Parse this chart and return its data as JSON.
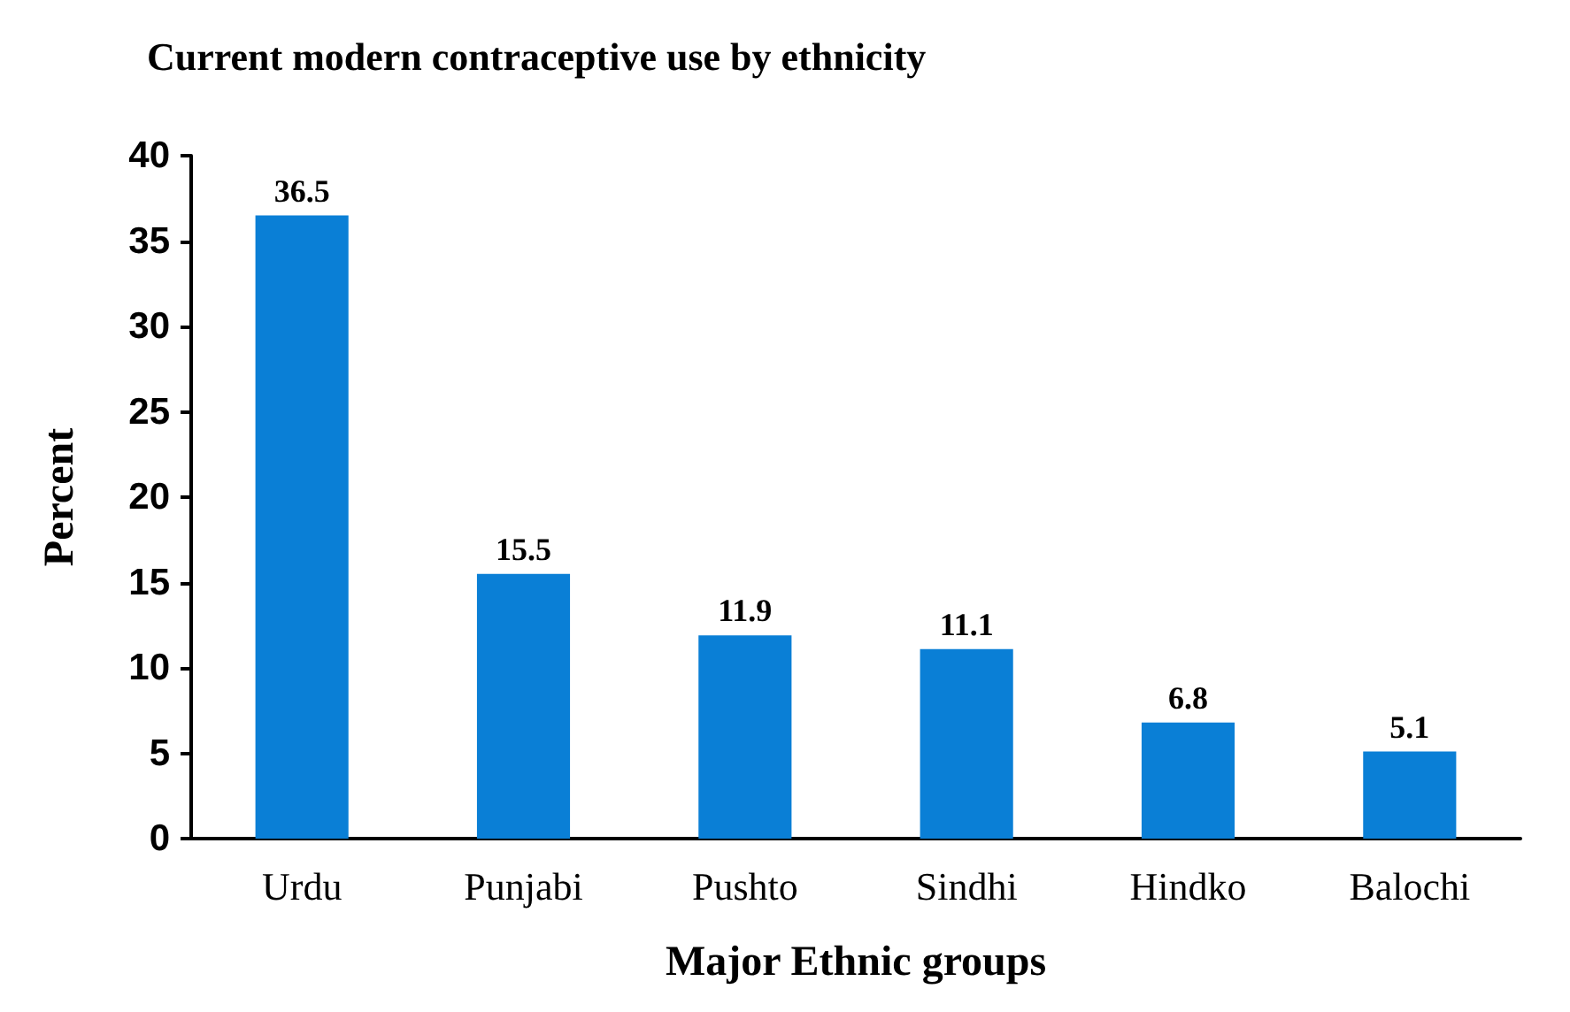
{
  "chart_data": {
    "type": "bar",
    "title": "Current modern contraceptive use by ethnicity",
    "xlabel": "Major Ethnic groups",
    "ylabel": "Percent",
    "categories": [
      "Urdu",
      "Punjabi",
      "Pushto",
      "Sindhi",
      "Hindko",
      "Balochi"
    ],
    "values": [
      36.5,
      15.5,
      11.9,
      11.1,
      6.8,
      5.1
    ],
    "color": "#0a7fd6",
    "ylim": [
      0,
      40
    ],
    "yticks": [
      0,
      5,
      10,
      15,
      20,
      25,
      30,
      35,
      40
    ],
    "grid": false,
    "data_labels": true
  }
}
